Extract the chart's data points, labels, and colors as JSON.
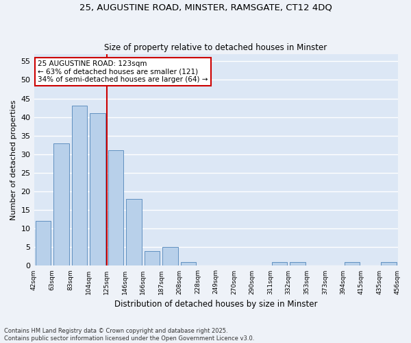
{
  "title1": "25, AUGUSTINE ROAD, MINSTER, RAMSGATE, CT12 4DQ",
  "title2": "Size of property relative to detached houses in Minster",
  "xlabel": "Distribution of detached houses by size in Minster",
  "ylabel": "Number of detached properties",
  "bar_values": [
    12,
    33,
    43,
    41,
    31,
    18,
    4,
    5,
    1,
    0,
    0,
    0,
    0,
    1,
    1,
    0,
    0,
    1,
    0,
    1
  ],
  "bin_labels": [
    "42sqm",
    "63sqm",
    "83sqm",
    "104sqm",
    "125sqm",
    "146sqm",
    "166sqm",
    "187sqm",
    "208sqm",
    "228sqm",
    "249sqm",
    "270sqm",
    "290sqm",
    "311sqm",
    "332sqm",
    "353sqm",
    "373sqm",
    "394sqm",
    "415sqm",
    "435sqm",
    "456sqm"
  ],
  "bar_color": "#b8d0ea",
  "bar_edge_color": "#6090c0",
  "background_color": "#dce7f5",
  "grid_color": "#ffffff",
  "vline_color": "#cc0000",
  "annotation_text": "25 AUGUSTINE ROAD: 123sqm\n← 63% of detached houses are smaller (121)\n34% of semi-detached houses are larger (64) →",
  "annotation_box_color": "#ffffff",
  "annotation_box_edge": "#cc0000",
  "ylim": [
    0,
    57
  ],
  "yticks": [
    0,
    5,
    10,
    15,
    20,
    25,
    30,
    35,
    40,
    45,
    50,
    55
  ],
  "footer": "Contains HM Land Registry data © Crown copyright and database right 2025.\nContains public sector information licensed under the Open Government Licence v3.0.",
  "fig_bg_color": "#eef2f8"
}
